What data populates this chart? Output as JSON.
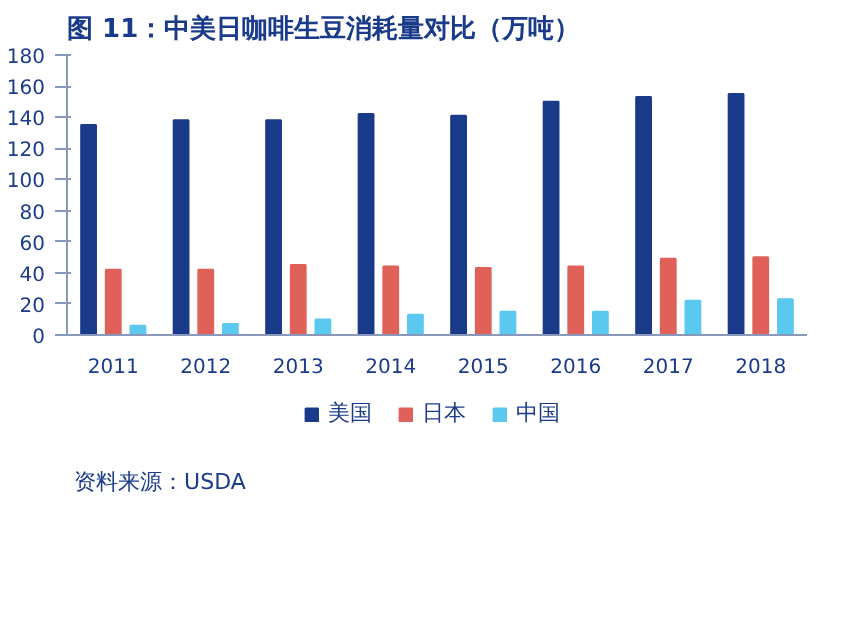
{
  "chart_data": {
    "type": "bar",
    "title": "图 11：中美日咖啡生豆消耗量对比（万吨）",
    "categories": [
      "2011",
      "2012",
      "2013",
      "2014",
      "2015",
      "2016",
      "2017",
      "2018"
    ],
    "series": [
      {
        "name": "美国",
        "color": "#1a3a8a",
        "values": [
          135,
          138,
          138,
          142,
          141,
          150,
          153,
          155
        ]
      },
      {
        "name": "日本",
        "color": "#e0605a",
        "values": [
          42,
          42,
          45,
          44,
          43,
          44,
          49,
          50
        ]
      },
      {
        "name": "中国",
        "color": "#5bc8f0",
        "values": [
          6,
          7,
          10,
          13,
          15,
          15,
          22,
          23
        ]
      }
    ],
    "ylim": [
      0,
      180
    ],
    "yticks": [
      0,
      20,
      40,
      60,
      80,
      100,
      120,
      140,
      160,
      180
    ],
    "grid": false,
    "legend": "bottom",
    "annotations": [
      "资料来源：USDA"
    ]
  }
}
